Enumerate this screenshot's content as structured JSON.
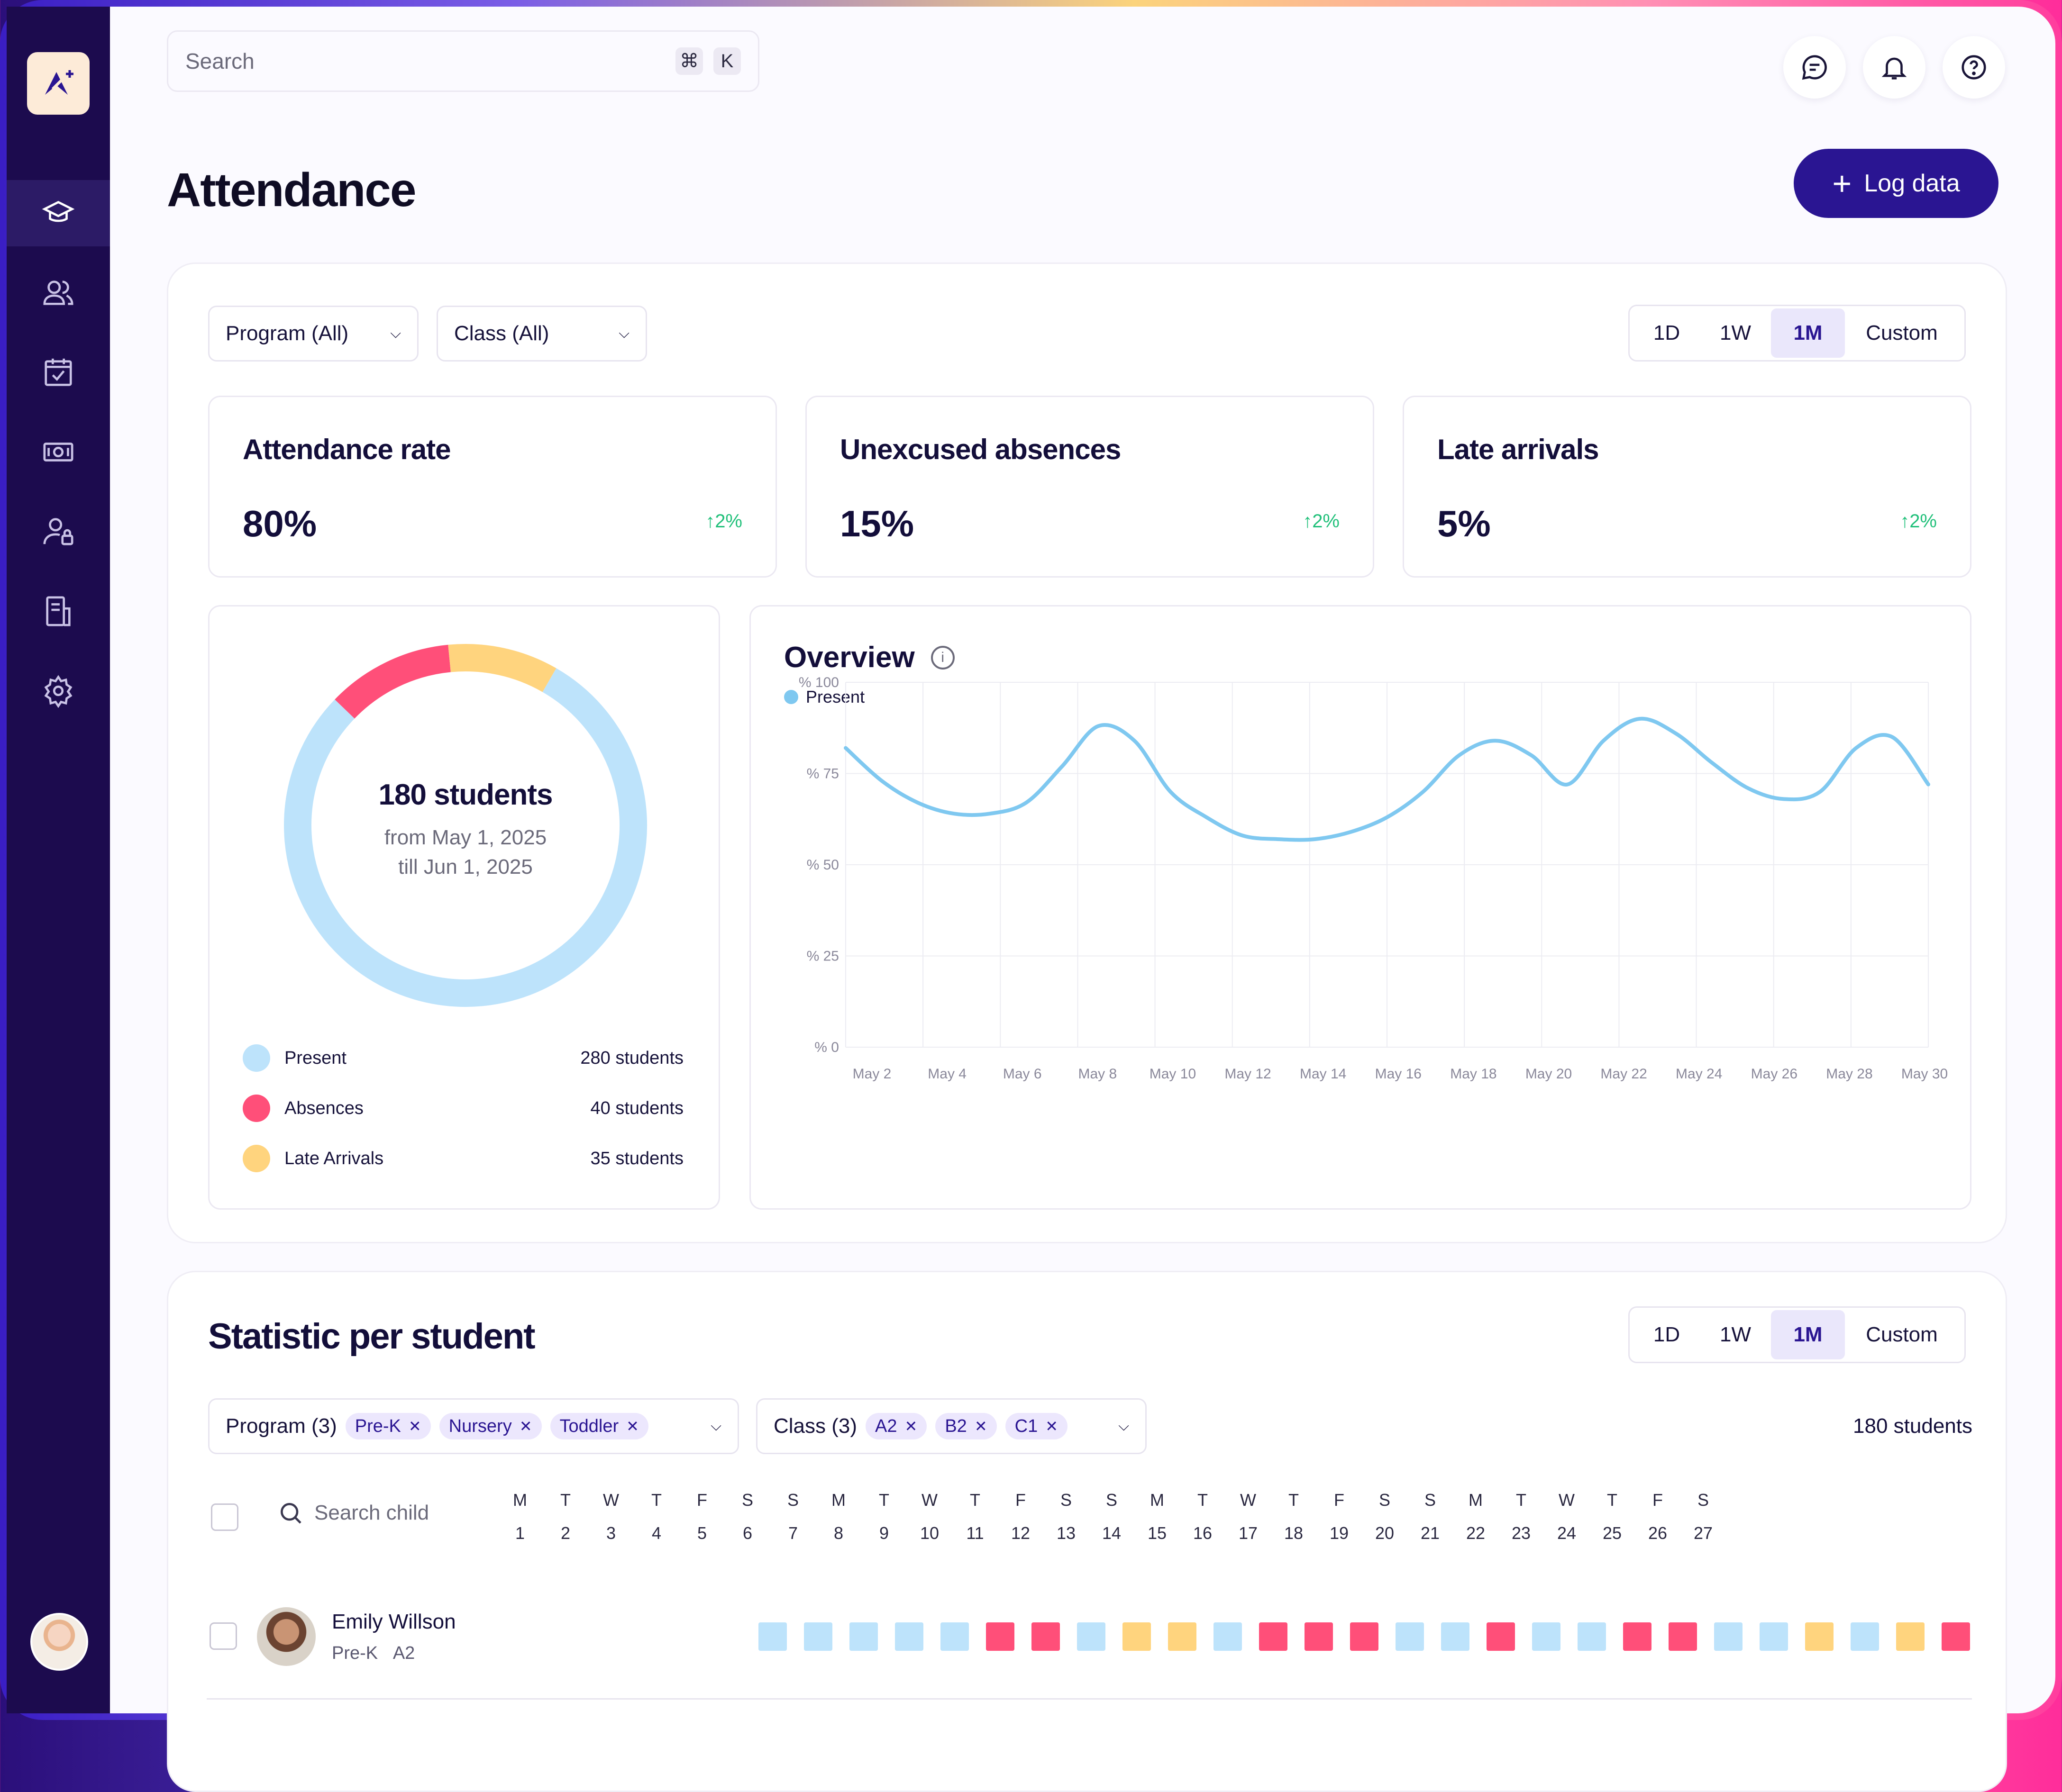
{
  "search": {
    "placeholder": "Search",
    "kbd1": "⌘",
    "kbd2": "K"
  },
  "page": {
    "title": "Attendance",
    "log_button": "Log data"
  },
  "filters": {
    "program": "Program (All)",
    "class": "Class (All)"
  },
  "ranges": [
    "1D",
    "1W",
    "1M",
    "Custom"
  ],
  "range_active": "1M",
  "kpis": [
    {
      "title": "Attendance rate",
      "value": "80%",
      "delta": "2%"
    },
    {
      "title": "Unexcused absences",
      "value": "15%",
      "delta": "2%"
    },
    {
      "title": "Late arrivals",
      "value": "5%",
      "delta": "2%"
    }
  ],
  "donut": {
    "title": "180 students",
    "from": "from May 1, 2025",
    "till": "till Jun 1, 2025",
    "legend": [
      {
        "label": "Present",
        "value": "280 students",
        "count": 280,
        "color": "#bde3fb"
      },
      {
        "label": "Absences",
        "value": "40 students",
        "count": 40,
        "color": "#ff4f79"
      },
      {
        "label": "Late Arrivals",
        "value": "35 students",
        "count": 35,
        "color": "#ffd47e"
      }
    ]
  },
  "overview": {
    "title": "Overview",
    "legend": "Present",
    "color": "#7fc8f0"
  },
  "chart_data": {
    "type": "line",
    "title": "Overview",
    "xlabel": "",
    "ylabel": "",
    "ylim": [
      0,
      100
    ],
    "y_ticks": [
      "% 0",
      "% 25",
      "% 50",
      "% 75",
      "% 100"
    ],
    "x_ticks": [
      "May 2",
      "May 4",
      "May 6",
      "May 8",
      "May 10",
      "May 12",
      "May 14",
      "May 16",
      "May 18",
      "May 20",
      "May 22",
      "May 24",
      "May 26",
      "May 28",
      "May 30"
    ],
    "series": [
      {
        "name": "Present",
        "x": [
          1,
          2,
          3,
          4,
          5,
          6,
          7,
          8,
          9,
          10,
          11,
          12,
          13,
          14,
          15,
          16,
          17,
          18,
          19,
          20,
          21,
          22,
          23,
          24,
          25,
          26,
          27,
          28,
          29,
          30,
          31
        ],
        "values": [
          82,
          73,
          67,
          64,
          64,
          67,
          77,
          88,
          84,
          70,
          63,
          58,
          57,
          57,
          59,
          63,
          70,
          80,
          84,
          80,
          72,
          84,
          90,
          86,
          78,
          71,
          68,
          70,
          82,
          85,
          72
        ]
      }
    ],
    "grid": true,
    "legend_position": "top-left"
  },
  "students": {
    "title": "Statistic per student",
    "program_label": "Program (3)",
    "program_tags": [
      "Pre-K",
      "Nursery",
      "Toddler"
    ],
    "class_label": "Class (3)",
    "class_tags": [
      "A2",
      "B2",
      "C1"
    ],
    "count": "180 students",
    "search_placeholder": "Search child",
    "days": [
      [
        "M",
        "1"
      ],
      [
        "T",
        "2"
      ],
      [
        "W",
        "3"
      ],
      [
        "T",
        "4"
      ],
      [
        "F",
        "5"
      ],
      [
        "S",
        "6"
      ],
      [
        "S",
        "7"
      ],
      [
        "M",
        "8"
      ],
      [
        "T",
        "9"
      ],
      [
        "W",
        "10"
      ],
      [
        "T",
        "11"
      ],
      [
        "F",
        "12"
      ],
      [
        "S",
        "13"
      ],
      [
        "S",
        "14"
      ],
      [
        "M",
        "15"
      ],
      [
        "T",
        "16"
      ],
      [
        "W",
        "17"
      ],
      [
        "T",
        "18"
      ],
      [
        "F",
        "19"
      ],
      [
        "S",
        "20"
      ],
      [
        "S",
        "21"
      ],
      [
        "M",
        "22"
      ],
      [
        "T",
        "23"
      ],
      [
        "W",
        "24"
      ],
      [
        "T",
        "25"
      ],
      [
        "F",
        "26"
      ],
      [
        "S",
        "27"
      ]
    ],
    "rows": [
      {
        "name": "Emily Willson",
        "program": "Pre-K",
        "class": "A2",
        "cells": [
          "p",
          "p",
          "p",
          "p",
          "p",
          "a",
          "a",
          "p",
          "l",
          "l",
          "p",
          "a",
          "a",
          "a",
          "p",
          "p",
          "a",
          "p",
          "p",
          "a",
          "a",
          "p",
          "p",
          "l",
          "p",
          "l",
          "a"
        ]
      }
    ]
  },
  "status_colors": {
    "p": "#bde3fb",
    "a": "#ff4f79",
    "l": "#ffd47e"
  }
}
